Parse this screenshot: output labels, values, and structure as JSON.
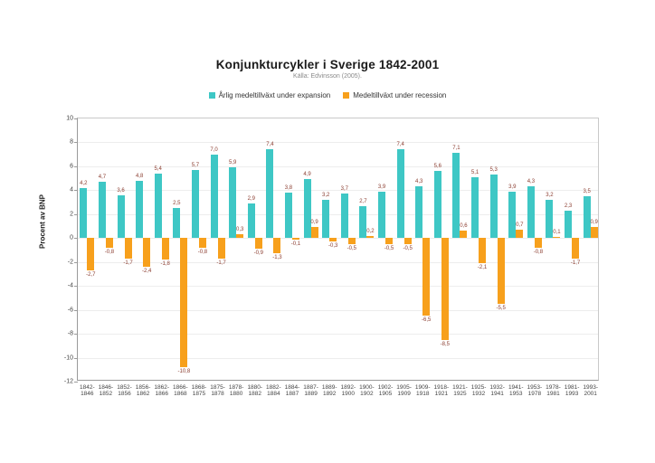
{
  "chart_data": {
    "type": "bar",
    "title": "Konjunkturcykler i Sverige 1842-2001",
    "subtitle": "Källa: Edvinsson (2005).",
    "ylabel": "Procent av BNP",
    "xlabel": "",
    "ylim": [
      -12,
      10
    ],
    "ytick_step": 2,
    "grid": true,
    "legend_position": "top-center",
    "categories": [
      "1842-1846",
      "1846-1852",
      "1852-1856",
      "1856-1862",
      "1862-1866",
      "1866-1868",
      "1868-1875",
      "1875-1878",
      "1878-1880",
      "1880-1882",
      "1882-1884",
      "1884-1887",
      "1887-1889",
      "1889-1892",
      "1892-1900",
      "1900-1902",
      "1902-1905",
      "1905-1909",
      "1909-1918",
      "1918-1921",
      "1921-1925",
      "1925-1932",
      "1932-1941",
      "1941-1953",
      "1953-1978",
      "1978-1981",
      "1981-1993",
      "1993-2001"
    ],
    "series": [
      {
        "name": "Årlig medeltillväxt under expansion",
        "color": "#3ec7c5",
        "values": [
          4.2,
          4.7,
          3.6,
          4.8,
          5.4,
          2.5,
          5.7,
          7.0,
          5.9,
          2.9,
          7.4,
          3.8,
          4.9,
          3.2,
          3.7,
          2.7,
          3.9,
          7.4,
          4.3,
          5.6,
          7.1,
          5.1,
          5.3,
          3.9,
          4.3,
          3.2,
          2.3,
          3.5
        ]
      },
      {
        "name": "Medeltillväxt under recession",
        "color": "#f7a01c",
        "values": [
          -2.7,
          -0.8,
          -1.7,
          -2.4,
          -1.8,
          -10.8,
          -0.8,
          -1.7,
          0.3,
          -0.9,
          -1.3,
          -0.1,
          0.9,
          -0.3,
          -0.5,
          0.2,
          -0.5,
          -0.5,
          -6.5,
          -8.5,
          0.6,
          -2.1,
          -5.5,
          0.7,
          -0.8,
          0.1,
          -1.7,
          0.9
        ]
      }
    ],
    "value_label_color": "#8b3d30",
    "decimal_separator": ","
  }
}
